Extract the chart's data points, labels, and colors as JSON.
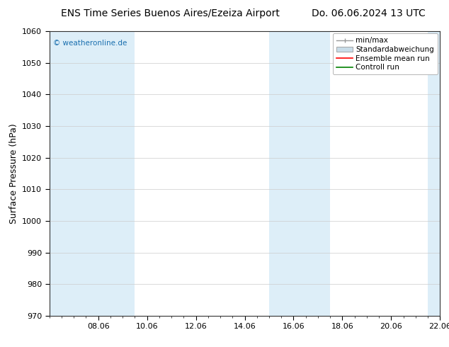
{
  "title_left": "ENS Time Series Buenos Aires/Ezeiza Airport",
  "title_right": "Do. 06.06.2024 13 UTC",
  "ylabel": "Surface Pressure (hPa)",
  "ylim": [
    970,
    1060
  ],
  "yticks": [
    970,
    980,
    990,
    1000,
    1010,
    1020,
    1030,
    1040,
    1050,
    1060
  ],
  "xlim_days": [
    0.0,
    16.0
  ],
  "xtick_labels": [
    "08.06",
    "10.06",
    "12.06",
    "14.06",
    "16.06",
    "18.06",
    "20.06",
    "22.06"
  ],
  "xtick_positions": [
    2,
    4,
    6,
    8,
    10,
    12,
    14,
    16
  ],
  "shaded_bands": [
    {
      "xmin": 0.0,
      "xmax": 3.5,
      "color": "#ddeef8"
    },
    {
      "xmin": 9.0,
      "xmax": 11.5,
      "color": "#ddeef8"
    },
    {
      "xmin": 15.5,
      "xmax": 16.0,
      "color": "#ddeef8"
    }
  ],
  "watermark": "© weatheronline.de",
  "watermark_color": "#1a6faf",
  "bg_color": "#ffffff",
  "plot_bg_color": "#ffffff",
  "spine_color": "#333333",
  "title_fontsize": 10,
  "axis_label_fontsize": 9,
  "tick_fontsize": 8,
  "legend_fontsize": 7.5
}
